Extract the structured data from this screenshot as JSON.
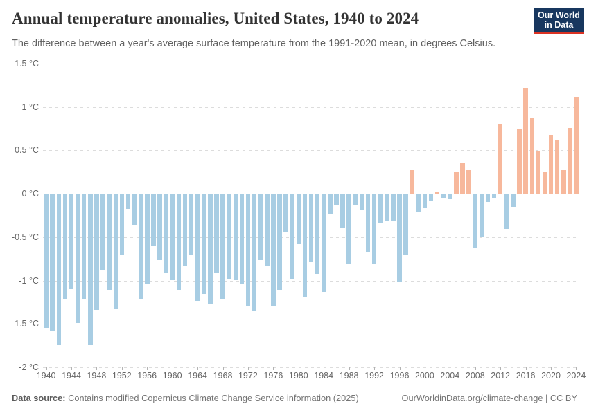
{
  "header": {
    "title": "Annual temperature anomalies, United States, 1940 to 2024",
    "subtitle": "The difference between a year's average surface temperature from the 1991-2020 mean, in degrees Celsius.",
    "logo": {
      "line1": "Our World",
      "line2": "in Data",
      "bg_color": "#18375f",
      "stripe_color": "#db3223"
    }
  },
  "chart_data": {
    "type": "bar",
    "title": "Annual temperature anomalies, United States, 1940 to 2024",
    "unit": "°C",
    "ylim": [
      -2,
      1.5
    ],
    "grid": "horizontal-dashed",
    "legend": "none",
    "colors": {
      "positive": "#f7b89c",
      "negative": "#a8cde3"
    },
    "yticks": [
      {
        "v": 1.5,
        "label": "1.5 °C"
      },
      {
        "v": 1,
        "label": "1 °C"
      },
      {
        "v": 0.5,
        "label": "0.5 °C"
      },
      {
        "v": 0,
        "label": "0 °C"
      },
      {
        "v": -0.5,
        "label": "-0.5 °C"
      },
      {
        "v": -1,
        "label": "-1 °C"
      },
      {
        "v": -1.5,
        "label": "-1.5 °C"
      },
      {
        "v": -2,
        "label": "-2 °C"
      }
    ],
    "xticks": [
      1940,
      1944,
      1948,
      1952,
      1956,
      1960,
      1964,
      1968,
      1972,
      1976,
      1980,
      1984,
      1988,
      1992,
      1996,
      2000,
      2004,
      2008,
      2012,
      2016,
      2020,
      2024
    ],
    "x": [
      1940,
      1941,
      1942,
      1943,
      1944,
      1945,
      1946,
      1947,
      1948,
      1949,
      1950,
      1951,
      1952,
      1953,
      1954,
      1955,
      1956,
      1957,
      1958,
      1959,
      1960,
      1961,
      1962,
      1963,
      1964,
      1965,
      1966,
      1967,
      1968,
      1969,
      1970,
      1971,
      1972,
      1973,
      1974,
      1975,
      1976,
      1977,
      1978,
      1979,
      1980,
      1981,
      1982,
      1983,
      1984,
      1985,
      1986,
      1987,
      1988,
      1989,
      1990,
      1991,
      1992,
      1993,
      1994,
      1995,
      1996,
      1997,
      1998,
      1999,
      2000,
      2001,
      2002,
      2003,
      2004,
      2005,
      2006,
      2007,
      2008,
      2009,
      2010,
      2011,
      2012,
      2013,
      2014,
      2015,
      2016,
      2017,
      2018,
      2019,
      2020,
      2021,
      2022,
      2023,
      2024
    ],
    "values": [
      -1.54,
      -1.58,
      -1.74,
      -1.2,
      -1.09,
      -1.48,
      -1.21,
      -1.74,
      -1.33,
      -0.88,
      -1.1,
      -1.32,
      -0.69,
      -0.17,
      -0.36,
      -1.2,
      -1.04,
      -0.59,
      -0.76,
      -0.91,
      -0.99,
      -1.1,
      -0.82,
      -0.7,
      -1.23,
      -1.15,
      -1.26,
      -0.9,
      -1.2,
      -0.98,
      -0.99,
      -1.04,
      -1.29,
      -1.35,
      -0.76,
      -0.82,
      -1.28,
      -1.1,
      -0.44,
      -0.97,
      -0.57,
      -1.18,
      -0.78,
      -0.92,
      -1.12,
      -0.22,
      -0.12,
      -0.38,
      -0.8,
      -0.13,
      -0.18,
      -0.67,
      -0.8,
      -0.33,
      -0.31,
      -0.31,
      -1.01,
      -0.7,
      0.27,
      -0.21,
      -0.15,
      -0.07,
      0.02,
      -0.04,
      -0.05,
      0.25,
      0.36,
      0.27,
      -0.61,
      -0.49,
      -0.09,
      -0.04,
      0.8,
      -0.4,
      -0.14,
      0.74,
      1.22,
      0.87,
      0.49,
      0.26,
      0.68,
      0.62,
      0.27,
      0.76,
      1.12
    ]
  },
  "footer": {
    "source_label": "Data source:",
    "source_text": " Contains modified Copernicus Climate Change Service information (2025)",
    "credit": "OurWorldinData.org/climate-change | CC BY"
  }
}
